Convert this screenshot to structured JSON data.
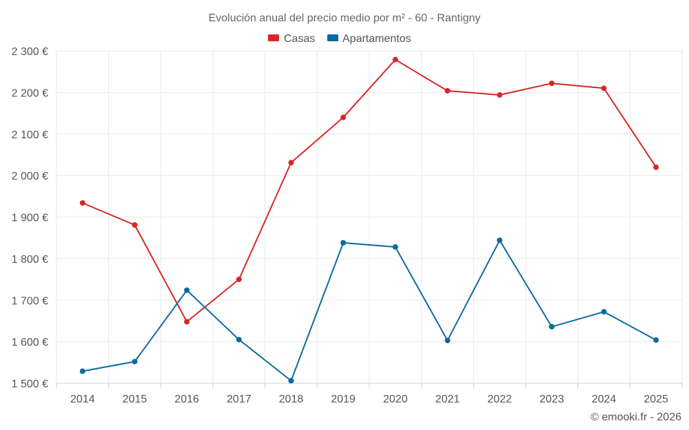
{
  "chart_data": {
    "type": "line",
    "title": "Evolución anual del precio medio por m² - 60 - Rantigny",
    "credit": "© emooki.fr - 2026",
    "xlabel": "",
    "ylabel": "",
    "categories": [
      "2014",
      "2015",
      "2016",
      "2017",
      "2018",
      "2019",
      "2020",
      "2021",
      "2022",
      "2023",
      "2024",
      "2025"
    ],
    "ylim": [
      1500,
      2300
    ],
    "yticks": [
      1500,
      1600,
      1700,
      1800,
      1900,
      2000,
      2100,
      2200,
      2300
    ],
    "ytick_labels": [
      "1 500 €",
      "1 600 €",
      "1 700 €",
      "1 800 €",
      "1 900 €",
      "2 000 €",
      "2 100 €",
      "2 200 €",
      "2 300 €"
    ],
    "legend_position": "top-center",
    "grid": true,
    "series": [
      {
        "name": "Casas",
        "color": "#d62728",
        "values": [
          1934,
          1881,
          1648,
          1750,
          2031,
          2140,
          2279,
          2204,
          2194,
          2222,
          2210,
          2020
        ]
      },
      {
        "name": "Apartamentos",
        "color": "#0a6aa1",
        "values": [
          1529,
          1552,
          1724,
          1605,
          1506,
          1838,
          1828,
          1603,
          1844,
          1636,
          1672,
          1604
        ]
      }
    ]
  }
}
